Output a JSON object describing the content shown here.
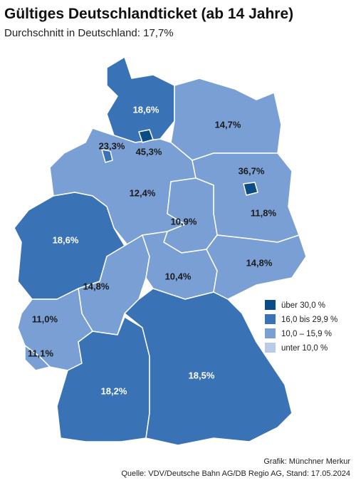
{
  "header": {
    "title": "Gültiges Deutschlandticket (ab 14 Jahre)",
    "subtitle": "Durchschnitt in Deutschland: 17,7%"
  },
  "regions": [
    {
      "label": "18,6%",
      "color": "#3a73b5"
    },
    {
      "label": "14,7%",
      "color": "#7a9fd4"
    },
    {
      "label": "12,4%",
      "color": "#7a9fd4"
    },
    {
      "label": "23,3%",
      "color": "#3a73b5"
    },
    {
      "label": "45,3%",
      "color": "#0b4c86"
    },
    {
      "label": "36,7%",
      "color": "#0b4c86"
    },
    {
      "label": "11,8%",
      "color": "#7a9fd4"
    },
    {
      "label": "10,9%",
      "color": "#7a9fd4"
    },
    {
      "label": "18,6%",
      "color": "#3a73b5"
    },
    {
      "label": "14,8%",
      "color": "#7a9fd4"
    },
    {
      "label": "10,4%",
      "color": "#7a9fd4"
    },
    {
      "label": "14,8%",
      "color": "#7a9fd4"
    },
    {
      "label": "11,0%",
      "color": "#7a9fd4"
    },
    {
      "label": "11,1%",
      "color": "#7a9fd4"
    },
    {
      "label": "18,2%",
      "color": "#3a73b5"
    },
    {
      "label": "18,5%",
      "color": "#3a73b5"
    }
  ],
  "legend": [
    {
      "label": "über 30,0 %",
      "color": "#0b4c86"
    },
    {
      "label": "16,0 bis 29,9 %",
      "color": "#3a73b5"
    },
    {
      "label": "10,0 – 15,9 %",
      "color": "#7a9fd4"
    },
    {
      "label": "unter 10,0 %",
      "color": "#b8cce8"
    }
  ],
  "footer": {
    "credit": "Grafik: Münchner Merkur",
    "source": "Quelle: VDV/Deutsche Bahn AG/DB Regio AG, Stand: 17.05.2024"
  }
}
